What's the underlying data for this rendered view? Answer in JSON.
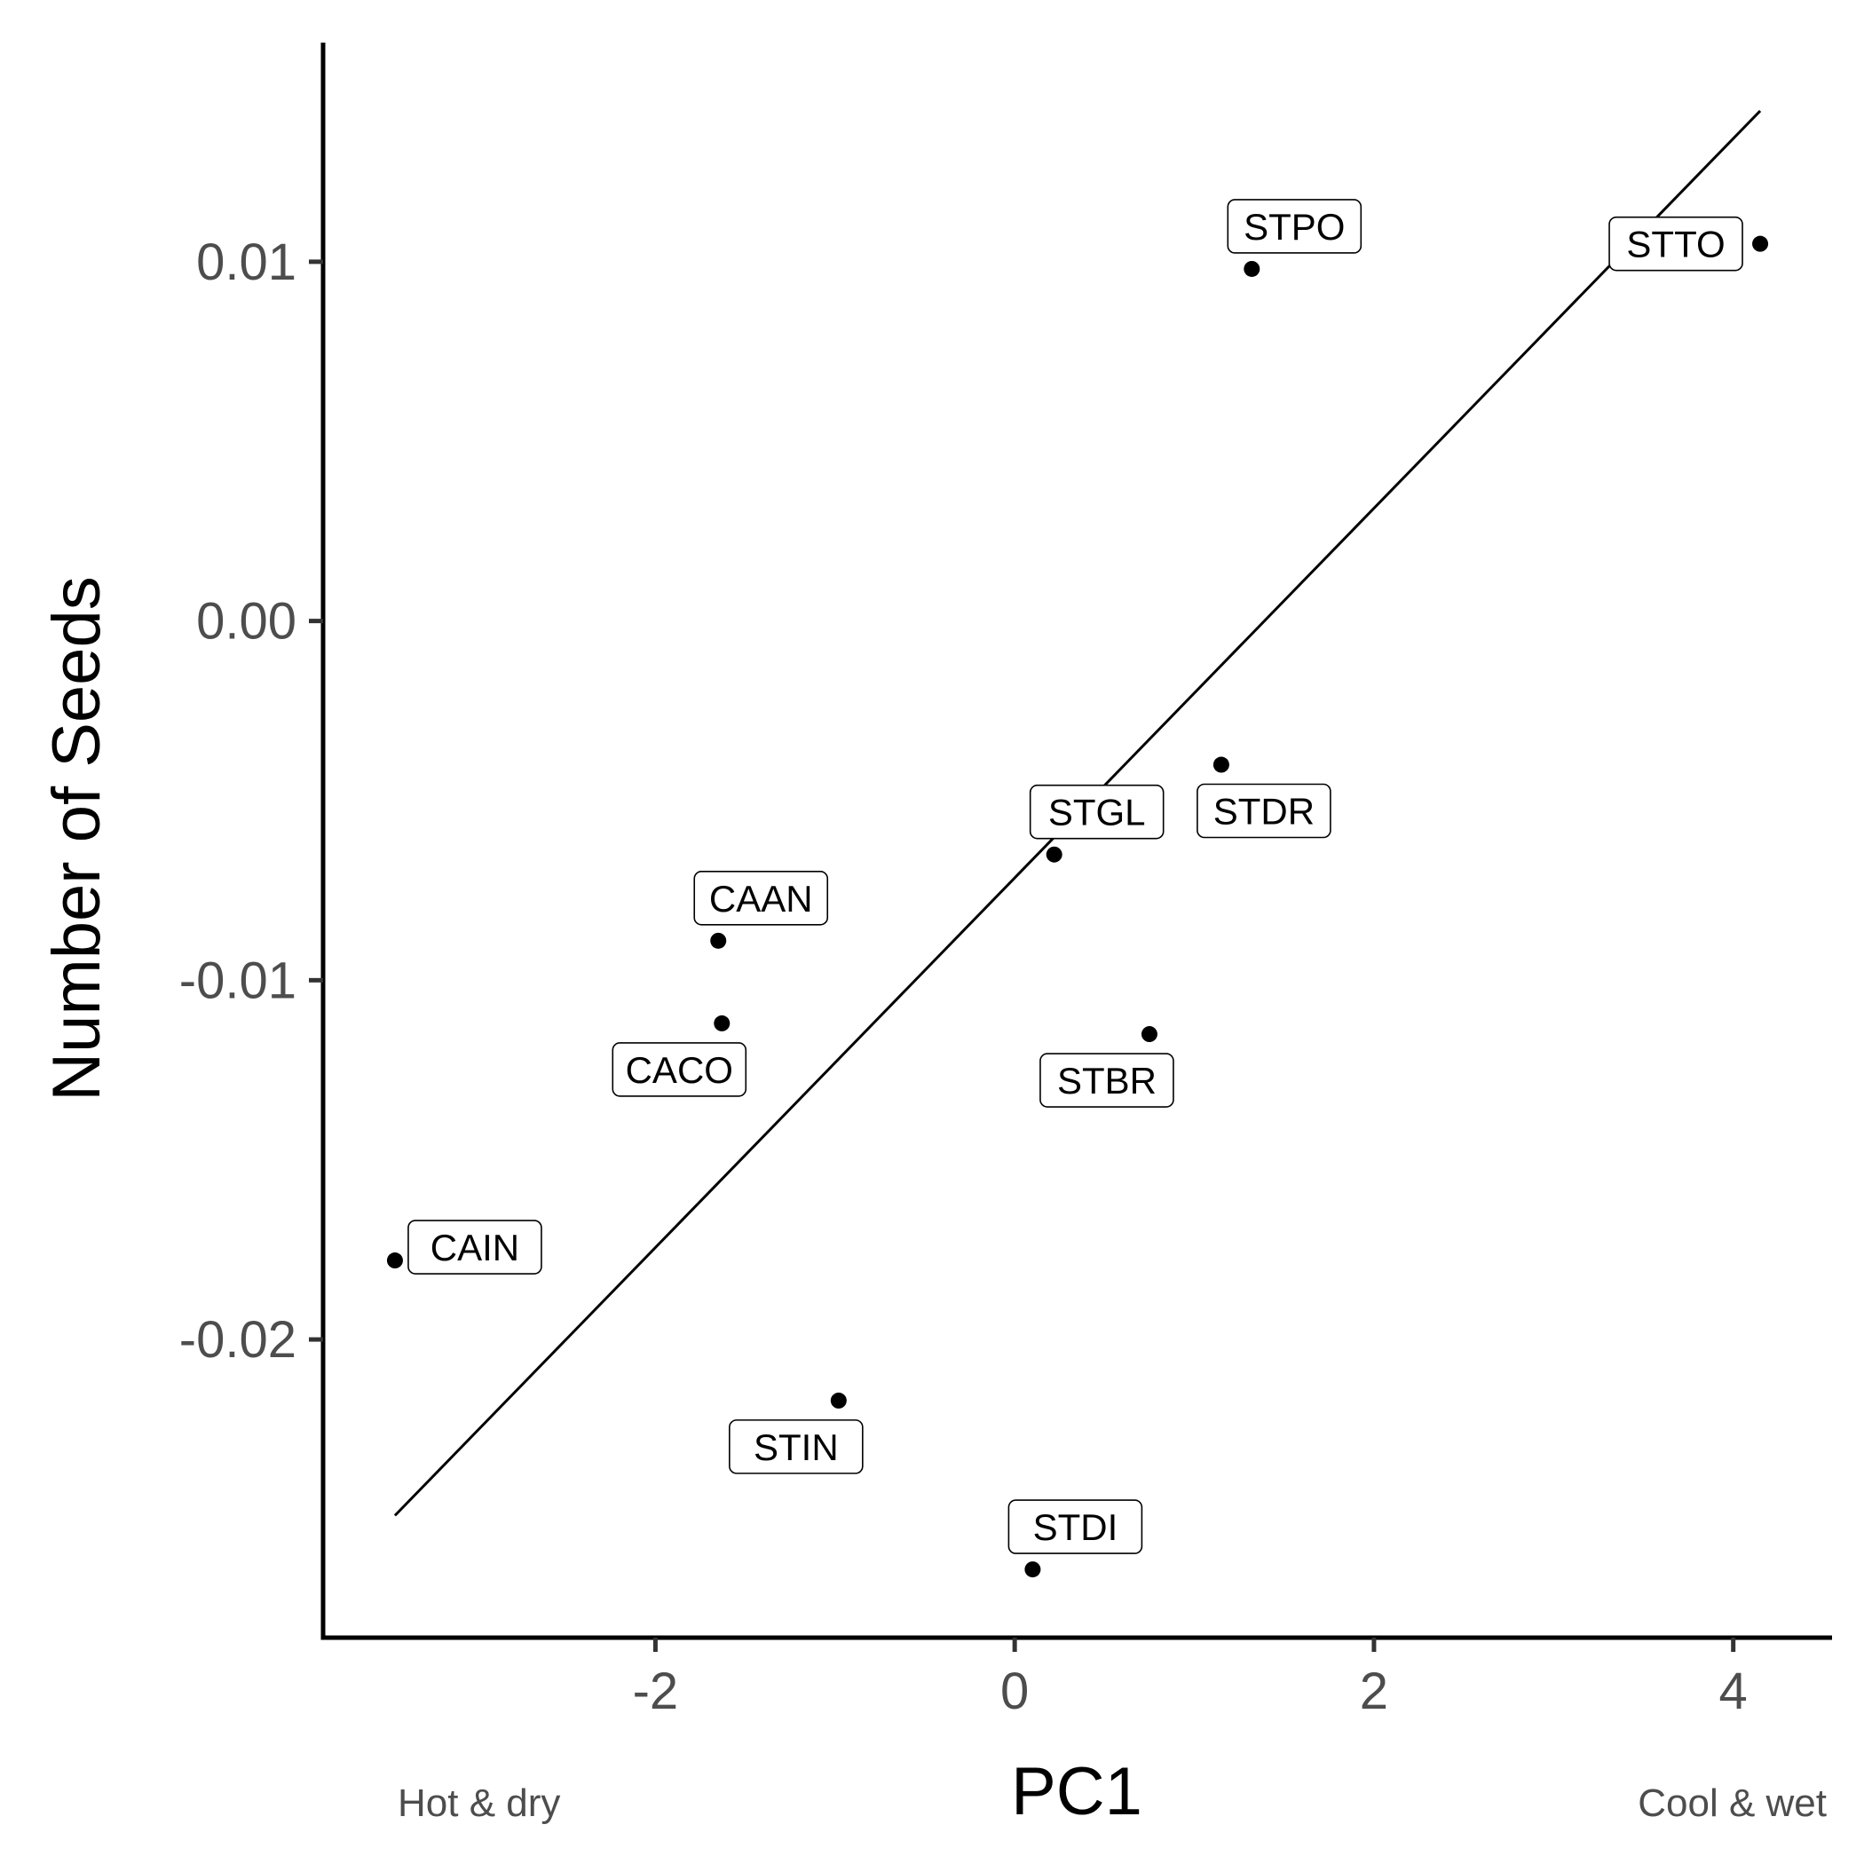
{
  "chart_data": {
    "type": "scatter",
    "xlabel": "PC1",
    "ylabel": "Number of Seeds",
    "xlim": [
      -3.85,
      4.55
    ],
    "ylim": [
      -0.0283,
      0.0161
    ],
    "x_ticks": [
      {
        "value": -2,
        "label": "-2"
      },
      {
        "value": 0,
        "label": "0"
      },
      {
        "value": 2,
        "label": "2"
      },
      {
        "value": 4,
        "label": "4"
      }
    ],
    "y_ticks": [
      {
        "value": 0.01,
        "label": "0.01"
      },
      {
        "value": 0.0,
        "label": "0.00"
      },
      {
        "value": -0.01,
        "label": "-0.01"
      },
      {
        "value": -0.02,
        "label": "-0.02"
      }
    ],
    "points": [
      {
        "label": "STTO",
        "x": 4.15,
        "y": 0.0105,
        "label_side": "left"
      },
      {
        "label": "STPO",
        "x": 1.32,
        "y": 0.0098,
        "label_side": "upper-right"
      },
      {
        "label": "STDR",
        "x": 1.15,
        "y": -0.004,
        "label_side": "lower-right"
      },
      {
        "label": "STGL",
        "x": 0.22,
        "y": -0.0065,
        "label_side": "upper-right"
      },
      {
        "label": "CAAN",
        "x": -1.65,
        "y": -0.0089,
        "label_side": "upper-right"
      },
      {
        "label": "CACO",
        "x": -1.63,
        "y": -0.0112,
        "label_side": "lower-left"
      },
      {
        "label": "STBR",
        "x": 0.75,
        "y": -0.0115,
        "label_side": "lower-left"
      },
      {
        "label": "CAIN",
        "x": -3.45,
        "y": -0.0178,
        "label_side": "right"
      },
      {
        "label": "STIN",
        "x": -0.98,
        "y": -0.0217,
        "label_side": "lower-left"
      },
      {
        "label": "STDI",
        "x": 0.1,
        "y": -0.0264,
        "label_side": "upper-right"
      }
    ],
    "trend_line": {
      "x": [
        -3.45,
        4.15
      ],
      "y": [
        -0.0249,
        0.0142
      ]
    },
    "annotations": {
      "left": "Hot & dry",
      "right": "Cool & wet"
    },
    "grid": false,
    "legend": "none"
  }
}
